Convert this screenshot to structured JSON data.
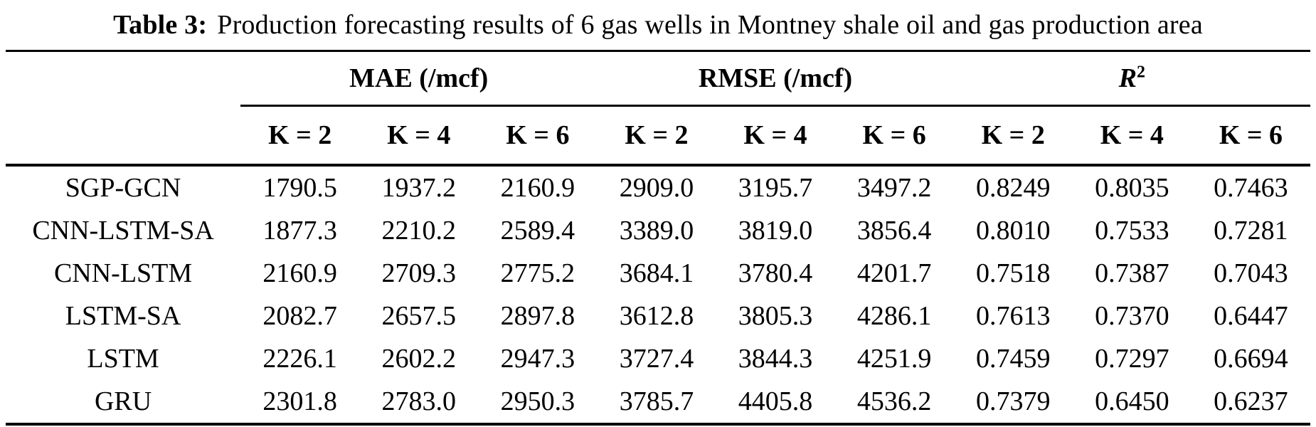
{
  "caption": {
    "label": "Table 3:",
    "text": "Production forecasting results of 6 gas wells in Montney shale oil and gas production area"
  },
  "colors": {
    "text": "#000000",
    "background": "#ffffff",
    "rule": "#000000"
  },
  "table": {
    "group_headers": {
      "mae": "MAE (/mcf)",
      "rmse": "RMSE (/mcf)",
      "r2_base": "R",
      "r2_sup": "2"
    },
    "subheaders": [
      "K = 2",
      "K = 4",
      "K = 6",
      "K = 2",
      "K = 4",
      "K = 6",
      "K = 2",
      "K = 4",
      "K = 6"
    ],
    "rows": [
      {
        "model": "SGP-GCN",
        "values": [
          "1790.5",
          "1937.2",
          "2160.9",
          "2909.0",
          "3195.7",
          "3497.2",
          "0.8249",
          "0.8035",
          "0.7463"
        ]
      },
      {
        "model": "CNN-LSTM-SA",
        "values": [
          "1877.3",
          "2210.2",
          "2589.4",
          "3389.0",
          "3819.0",
          "3856.4",
          "0.8010",
          "0.7533",
          "0.7281"
        ]
      },
      {
        "model": "CNN-LSTM",
        "values": [
          "2160.9",
          "2709.3",
          "2775.2",
          "3684.1",
          "3780.4",
          "4201.7",
          "0.7518",
          "0.7387",
          "0.7043"
        ]
      },
      {
        "model": "LSTM-SA",
        "values": [
          "2082.7",
          "2657.5",
          "2897.8",
          "3612.8",
          "3805.3",
          "4286.1",
          "0.7613",
          "0.7370",
          "0.6447"
        ]
      },
      {
        "model": "LSTM",
        "values": [
          "2226.1",
          "2602.2",
          "2947.3",
          "3727.4",
          "3844.3",
          "4251.9",
          "0.7459",
          "0.7297",
          "0.6694"
        ]
      },
      {
        "model": "GRU",
        "values": [
          "2301.8",
          "2783.0",
          "2950.3",
          "3785.7",
          "4405.8",
          "4536.2",
          "0.7379",
          "0.6450",
          "0.6237"
        ]
      }
    ]
  }
}
